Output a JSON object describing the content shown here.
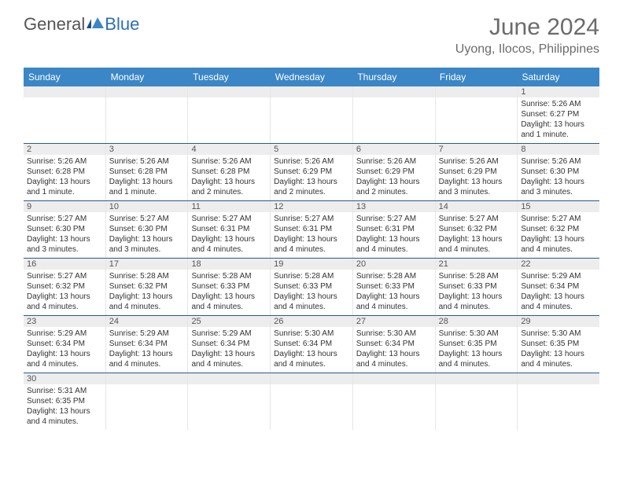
{
  "logo": {
    "text1": "General",
    "text2": "Blue"
  },
  "title": "June 2024",
  "location": "Uyong, Ilocos, Philippines",
  "colors": {
    "header_bg": "#3b86c6",
    "header_text": "#ffffff",
    "daynum_bg": "#ededed",
    "border": "#2d5a8c",
    "cell_border": "#e6e6e6",
    "text": "#333333",
    "title_text": "#6b6b6b",
    "logo_blue": "#2d6fb5"
  },
  "dayNames": [
    "Sunday",
    "Monday",
    "Tuesday",
    "Wednesday",
    "Thursday",
    "Friday",
    "Saturday"
  ],
  "weeks": [
    [
      null,
      null,
      null,
      null,
      null,
      null,
      {
        "d": "1",
        "sr": "Sunrise: 5:26 AM",
        "ss": "Sunset: 6:27 PM",
        "dl": "Daylight: 13 hours and 1 minute."
      }
    ],
    [
      {
        "d": "2",
        "sr": "Sunrise: 5:26 AM",
        "ss": "Sunset: 6:28 PM",
        "dl": "Daylight: 13 hours and 1 minute."
      },
      {
        "d": "3",
        "sr": "Sunrise: 5:26 AM",
        "ss": "Sunset: 6:28 PM",
        "dl": "Daylight: 13 hours and 1 minute."
      },
      {
        "d": "4",
        "sr": "Sunrise: 5:26 AM",
        "ss": "Sunset: 6:28 PM",
        "dl": "Daylight: 13 hours and 2 minutes."
      },
      {
        "d": "5",
        "sr": "Sunrise: 5:26 AM",
        "ss": "Sunset: 6:29 PM",
        "dl": "Daylight: 13 hours and 2 minutes."
      },
      {
        "d": "6",
        "sr": "Sunrise: 5:26 AM",
        "ss": "Sunset: 6:29 PM",
        "dl": "Daylight: 13 hours and 2 minutes."
      },
      {
        "d": "7",
        "sr": "Sunrise: 5:26 AM",
        "ss": "Sunset: 6:29 PM",
        "dl": "Daylight: 13 hours and 3 minutes."
      },
      {
        "d": "8",
        "sr": "Sunrise: 5:26 AM",
        "ss": "Sunset: 6:30 PM",
        "dl": "Daylight: 13 hours and 3 minutes."
      }
    ],
    [
      {
        "d": "9",
        "sr": "Sunrise: 5:27 AM",
        "ss": "Sunset: 6:30 PM",
        "dl": "Daylight: 13 hours and 3 minutes."
      },
      {
        "d": "10",
        "sr": "Sunrise: 5:27 AM",
        "ss": "Sunset: 6:30 PM",
        "dl": "Daylight: 13 hours and 3 minutes."
      },
      {
        "d": "11",
        "sr": "Sunrise: 5:27 AM",
        "ss": "Sunset: 6:31 PM",
        "dl": "Daylight: 13 hours and 4 minutes."
      },
      {
        "d": "12",
        "sr": "Sunrise: 5:27 AM",
        "ss": "Sunset: 6:31 PM",
        "dl": "Daylight: 13 hours and 4 minutes."
      },
      {
        "d": "13",
        "sr": "Sunrise: 5:27 AM",
        "ss": "Sunset: 6:31 PM",
        "dl": "Daylight: 13 hours and 4 minutes."
      },
      {
        "d": "14",
        "sr": "Sunrise: 5:27 AM",
        "ss": "Sunset: 6:32 PM",
        "dl": "Daylight: 13 hours and 4 minutes."
      },
      {
        "d": "15",
        "sr": "Sunrise: 5:27 AM",
        "ss": "Sunset: 6:32 PM",
        "dl": "Daylight: 13 hours and 4 minutes."
      }
    ],
    [
      {
        "d": "16",
        "sr": "Sunrise: 5:27 AM",
        "ss": "Sunset: 6:32 PM",
        "dl": "Daylight: 13 hours and 4 minutes."
      },
      {
        "d": "17",
        "sr": "Sunrise: 5:28 AM",
        "ss": "Sunset: 6:32 PM",
        "dl": "Daylight: 13 hours and 4 minutes."
      },
      {
        "d": "18",
        "sr": "Sunrise: 5:28 AM",
        "ss": "Sunset: 6:33 PM",
        "dl": "Daylight: 13 hours and 4 minutes."
      },
      {
        "d": "19",
        "sr": "Sunrise: 5:28 AM",
        "ss": "Sunset: 6:33 PM",
        "dl": "Daylight: 13 hours and 4 minutes."
      },
      {
        "d": "20",
        "sr": "Sunrise: 5:28 AM",
        "ss": "Sunset: 6:33 PM",
        "dl": "Daylight: 13 hours and 4 minutes."
      },
      {
        "d": "21",
        "sr": "Sunrise: 5:28 AM",
        "ss": "Sunset: 6:33 PM",
        "dl": "Daylight: 13 hours and 4 minutes."
      },
      {
        "d": "22",
        "sr": "Sunrise: 5:29 AM",
        "ss": "Sunset: 6:34 PM",
        "dl": "Daylight: 13 hours and 4 minutes."
      }
    ],
    [
      {
        "d": "23",
        "sr": "Sunrise: 5:29 AM",
        "ss": "Sunset: 6:34 PM",
        "dl": "Daylight: 13 hours and 4 minutes."
      },
      {
        "d": "24",
        "sr": "Sunrise: 5:29 AM",
        "ss": "Sunset: 6:34 PM",
        "dl": "Daylight: 13 hours and 4 minutes."
      },
      {
        "d": "25",
        "sr": "Sunrise: 5:29 AM",
        "ss": "Sunset: 6:34 PM",
        "dl": "Daylight: 13 hours and 4 minutes."
      },
      {
        "d": "26",
        "sr": "Sunrise: 5:30 AM",
        "ss": "Sunset: 6:34 PM",
        "dl": "Daylight: 13 hours and 4 minutes."
      },
      {
        "d": "27",
        "sr": "Sunrise: 5:30 AM",
        "ss": "Sunset: 6:34 PM",
        "dl": "Daylight: 13 hours and 4 minutes."
      },
      {
        "d": "28",
        "sr": "Sunrise: 5:30 AM",
        "ss": "Sunset: 6:35 PM",
        "dl": "Daylight: 13 hours and 4 minutes."
      },
      {
        "d": "29",
        "sr": "Sunrise: 5:30 AM",
        "ss": "Sunset: 6:35 PM",
        "dl": "Daylight: 13 hours and 4 minutes."
      }
    ],
    [
      {
        "d": "30",
        "sr": "Sunrise: 5:31 AM",
        "ss": "Sunset: 6:35 PM",
        "dl": "Daylight: 13 hours and 4 minutes."
      },
      null,
      null,
      null,
      null,
      null,
      null
    ]
  ]
}
